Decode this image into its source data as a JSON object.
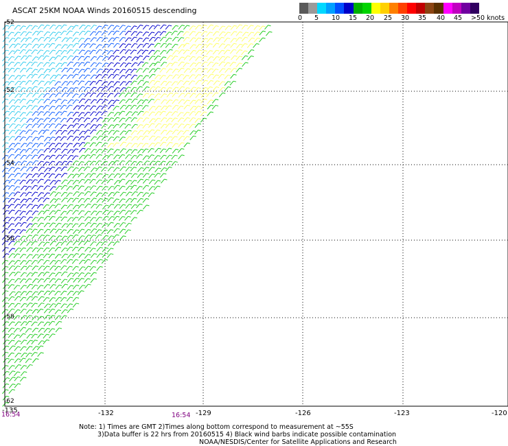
{
  "title": "ASCAT 25KM NOAA Winds 20160515 descending",
  "legend": {
    "colors": [
      "#5a5a5a",
      "#9a9a9a",
      "#00d8ff",
      "#00a0ff",
      "#0050ff",
      "#0000c8",
      "#00b000",
      "#00d400",
      "#ffff00",
      "#ffd000",
      "#ff8000",
      "#ff4000",
      "#ff0000",
      "#c00000",
      "#8b4513",
      "#5a3000",
      "#ff00ff",
      "#c000c0",
      "#7000a0",
      "#300060"
    ],
    "labels": [
      "0",
      "5",
      "10",
      "15",
      "20",
      "25",
      "30",
      "35",
      "40",
      "45",
      ">50 knots"
    ]
  },
  "axes": {
    "lon_ticks": [
      "-135",
      "-132",
      "-129",
      "-126",
      "-123",
      "-120"
    ],
    "lat_ticks": [
      "-52",
      "-52",
      "-54",
      "-56",
      "-58",
      "-62"
    ],
    "time_labels": [
      "16:54",
      "16:54"
    ]
  },
  "notes": [
    "Note: 1) Times are GMT 2)Times along bottom correspond to measurement at ~55S",
    "3)Data buffer is 22 hrs from 20160515 4) Black wind barbs indicate possible contamination",
    "NOAA/NESDIS/Center for Satellite Applications and Research"
  ]
}
